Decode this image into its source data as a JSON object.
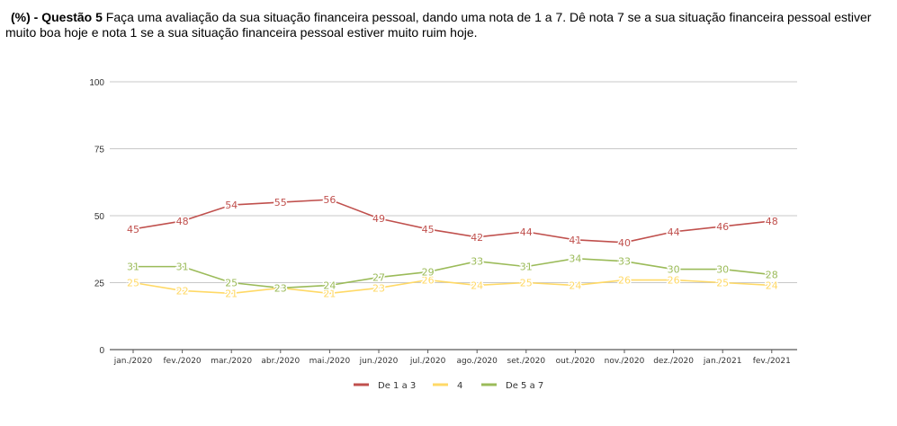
{
  "header": {
    "prefix": "(%) - Questão 5",
    "text": "Faça uma avaliação da sua situação financeira pessoal, dando uma nota de 1 a 7. Dê nota 7 se a sua situação financeira pessoal estiver muito boa hoje e nota 1 se a sua situação financeira pessoal estiver muito ruim hoje."
  },
  "chart_data": {
    "type": "line",
    "title": "",
    "xlabel": "",
    "ylabel": "",
    "ylim": [
      0,
      100
    ],
    "yticks": [
      0,
      25,
      50,
      75,
      100
    ],
    "grid": true,
    "legend_position": "bottom",
    "categories": [
      "jan./2020",
      "fev./2020",
      "mar./2020",
      "abr./2020",
      "mai./2020",
      "jun./2020",
      "jul./2020",
      "ago./2020",
      "set./2020",
      "out./2020",
      "nov./2020",
      "dez./2020",
      "jan./2021",
      "fev./2021"
    ],
    "series": [
      {
        "name": "De 1 a 3",
        "color": "#c0504d",
        "values": [
          45,
          48,
          54,
          55,
          56,
          49,
          45,
          42,
          44,
          41,
          40,
          44,
          46,
          48
        ]
      },
      {
        "name": "4",
        "color": "#ffd966",
        "values": [
          25,
          22,
          21,
          23,
          21,
          23,
          26,
          24,
          25,
          24,
          26,
          26,
          25,
          24
        ]
      },
      {
        "name": "De 5 a 7",
        "color": "#9bbb59",
        "values": [
          31,
          31,
          25,
          23,
          24,
          27,
          29,
          33,
          31,
          34,
          33,
          30,
          30,
          28
        ]
      }
    ]
  }
}
